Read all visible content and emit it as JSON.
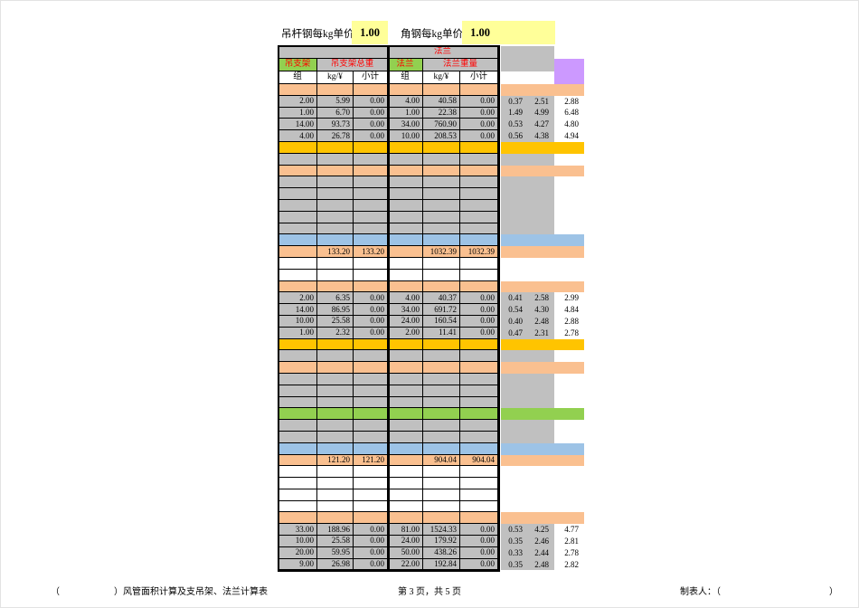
{
  "page": {
    "top_bar": {
      "hanger_rod_price_label": "吊杆钢每kg单价",
      "hanger_rod_price_value": "1.00",
      "angle_steel_price_label": "角钢每kg单价",
      "angle_steel_price_value": "1.00"
    },
    "table": {
      "banner_flange": "法兰",
      "group_hanger_name": "吊支架",
      "group_hanger_total": "吊支架总重",
      "group_flange_name": "法兰",
      "group_flange_total": "法兰重量",
      "col_headers": [
        "组",
        "kg/¥",
        "小计",
        "组",
        "kg/¥",
        "小计"
      ],
      "rows": [
        {
          "type": "orange"
        },
        {
          "type": "data",
          "cells": [
            "2.00",
            "5.99",
            "0.00",
            "4.00",
            "40.58",
            "0.00"
          ],
          "right": [
            "0.37",
            "2.51",
            "2.88"
          ]
        },
        {
          "type": "data",
          "cells": [
            "1.00",
            "6.70",
            "0.00",
            "1.00",
            "22.38",
            "0.00"
          ],
          "right": [
            "1.49",
            "4.99",
            "6.48"
          ]
        },
        {
          "type": "data",
          "cells": [
            "14.00",
            "93.73",
            "0.00",
            "34.00",
            "760.90",
            "0.00"
          ],
          "right": [
            "0.53",
            "4.27",
            "4.80"
          ]
        },
        {
          "type": "data",
          "cells": [
            "4.00",
            "26.78",
            "0.00",
            "10.00",
            "208.53",
            "0.00"
          ],
          "right": [
            "0.56",
            "4.38",
            "4.94"
          ]
        },
        {
          "type": "yellow"
        },
        {
          "type": "gray"
        },
        {
          "type": "orange"
        },
        {
          "type": "gray"
        },
        {
          "type": "gray"
        },
        {
          "type": "gray"
        },
        {
          "type": "gray"
        },
        {
          "type": "gray"
        },
        {
          "type": "blue"
        },
        {
          "type": "total",
          "cells": [
            "",
            "133.20",
            "133.20",
            "",
            "1032.39",
            "1032.39"
          ]
        },
        {
          "type": "white"
        },
        {
          "type": "white"
        },
        {
          "type": "orange"
        },
        {
          "type": "data",
          "cells": [
            "2.00",
            "6.35",
            "0.00",
            "4.00",
            "40.37",
            "0.00"
          ],
          "right": [
            "0.41",
            "2.58",
            "2.99"
          ]
        },
        {
          "type": "data",
          "cells": [
            "14.00",
            "86.95",
            "0.00",
            "34.00",
            "691.72",
            "0.00"
          ],
          "right": [
            "0.54",
            "4.30",
            "4.84"
          ]
        },
        {
          "type": "data",
          "cells": [
            "10.00",
            "25.58",
            "0.00",
            "24.00",
            "160.54",
            "0.00"
          ],
          "right": [
            "0.40",
            "2.48",
            "2.88"
          ]
        },
        {
          "type": "data",
          "cells": [
            "1.00",
            "2.32",
            "0.00",
            "2.00",
            "11.41",
            "0.00"
          ],
          "right": [
            "0.47",
            "2.31",
            "2.78"
          ]
        },
        {
          "type": "yellow"
        },
        {
          "type": "gray"
        },
        {
          "type": "orange"
        },
        {
          "type": "gray"
        },
        {
          "type": "gray"
        },
        {
          "type": "gray"
        },
        {
          "type": "green"
        },
        {
          "type": "gray"
        },
        {
          "type": "gray"
        },
        {
          "type": "blue"
        },
        {
          "type": "total",
          "cells": [
            "",
            "121.20",
            "121.20",
            "",
            "904.04",
            "904.04"
          ]
        },
        {
          "type": "white"
        },
        {
          "type": "white"
        },
        {
          "type": "white"
        },
        {
          "type": "white"
        },
        {
          "type": "orange"
        },
        {
          "type": "data",
          "cells": [
            "33.00",
            "188.96",
            "0.00",
            "81.00",
            "1524.33",
            "0.00"
          ],
          "right": [
            "0.53",
            "4.25",
            "4.77"
          ]
        },
        {
          "type": "data",
          "cells": [
            "10.00",
            "25.58",
            "0.00",
            "24.00",
            "179.92",
            "0.00"
          ],
          "right": [
            "0.35",
            "2.46",
            "2.81"
          ]
        },
        {
          "type": "data",
          "cells": [
            "20.00",
            "59.95",
            "0.00",
            "50.00",
            "438.26",
            "0.00"
          ],
          "right": [
            "0.33",
            "2.44",
            "2.78"
          ]
        },
        {
          "type": "data",
          "cells": [
            "9.00",
            "26.98",
            "0.00",
            "22.00",
            "192.84",
            "0.00"
          ],
          "right": [
            "0.35",
            "2.48",
            "2.82"
          ]
        }
      ]
    },
    "footer": {
      "left": "（　　　　　　）风管面积计算及支吊架、法兰计算表",
      "center": "第 3 页，共 5 页",
      "right": "制表人：（　　　　　　　　　　　　）"
    },
    "colors": {
      "gray": "#C0C0C0",
      "orange": "#FAC090",
      "gold": "#FFC400",
      "blue": "#9DC3E6",
      "green": "#92D050",
      "lightyellow": "#FFFF99",
      "purple": "#CC99FF",
      "red": "#FF0000"
    }
  }
}
